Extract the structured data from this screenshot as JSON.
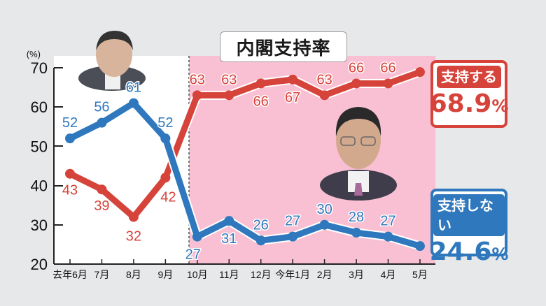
{
  "title": "内閣支持率",
  "unit_label": "(%)",
  "legend": {
    "support": {
      "label": "支持する",
      "value": "68.9",
      "pct": "%",
      "color": "#d6433a"
    },
    "nonsupport": {
      "label": "支持しない",
      "value": "24.6",
      "pct": "%",
      "color": "#2f78bd"
    }
  },
  "photos": {
    "left": "suga-portrait",
    "right": "kishida-portrait"
  },
  "chart_data": {
    "type": "line",
    "title": "内閣支持率",
    "xlabel": "",
    "ylabel": "(%)",
    "ylim": [
      20,
      70
    ],
    "yticks": [
      20,
      30,
      40,
      50,
      60,
      70
    ],
    "categories": [
      "去年6月",
      "7月",
      "8月",
      "9月",
      "10月",
      "11月",
      "12月",
      "今年1月",
      "2月",
      "3月",
      "4月",
      "5月"
    ],
    "series": [
      {
        "name": "支持する",
        "color": "#d6433a",
        "values": [
          43,
          39,
          32,
          42,
          63,
          63,
          66,
          67,
          63,
          66,
          66,
          68.9
        ],
        "labels": [
          "43",
          "39",
          "32",
          "42",
          "63",
          "63",
          "66",
          "67",
          "63",
          "66",
          "66",
          ""
        ]
      },
      {
        "name": "支持しない",
        "color": "#2f78bd",
        "values": [
          52,
          56,
          61,
          52,
          27,
          31,
          26,
          27,
          30,
          28,
          27,
          24.6
        ],
        "labels": [
          "52",
          "56",
          "61",
          "52",
          "27",
          "31",
          "26",
          "27",
          "30",
          "28",
          "27",
          ""
        ]
      }
    ],
    "shaded_region": {
      "from_category": "10月",
      "color": "#f9c0d3",
      "note": "pink background from October onward (new cabinet)"
    },
    "grid": false,
    "legend_position": "right"
  }
}
